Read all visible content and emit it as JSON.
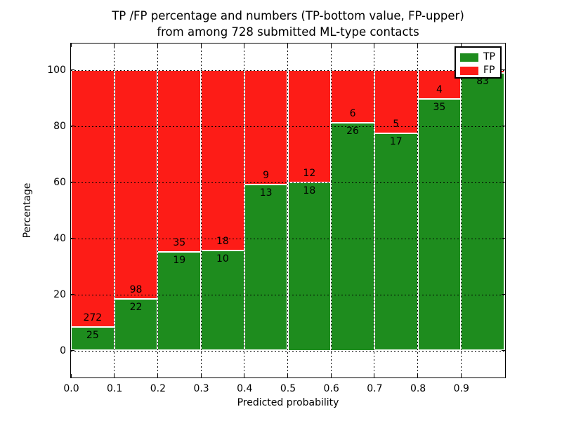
{
  "title": {
    "line1": "TP /FP percentage and numbers (TP-bottom value, FP-upper)",
    "line2": "from among 728 submitted ML-type contacts"
  },
  "chart_data": {
    "type": "bar",
    "stacked": true,
    "normalized_to_percent": true,
    "title": "TP /FP percentage and numbers (TP-bottom value, FP-upper) from among 728 submitted ML-type contacts",
    "xlabel": "Predicted probability",
    "ylabel": "Percentage",
    "total_submitted": 728,
    "bin_width": 0.1,
    "xlim": [
      0.0,
      1.0
    ],
    "ylim": [
      -10,
      110
    ],
    "grid": true,
    "x_tick_labels": [
      "0.0",
      "0.1",
      "0.2",
      "0.3",
      "0.4",
      "0.5",
      "0.6",
      "0.7",
      "0.8",
      "0.9"
    ],
    "y_tick_values": [
      0,
      20,
      40,
      60,
      80,
      100
    ],
    "y_tick_labels": [
      "0",
      "20",
      "40",
      "60",
      "80",
      "100"
    ],
    "legend": {
      "position": "upper right",
      "entries": [
        "TP",
        "FP"
      ]
    },
    "series": [
      {
        "name": "TP",
        "color": "#1e8c1e",
        "counts": [
          25,
          22,
          19,
          10,
          13,
          18,
          26,
          17,
          35,
          83
        ]
      },
      {
        "name": "FP",
        "color": "#fd1c17",
        "counts": [
          272,
          98,
          35,
          18,
          9,
          12,
          6,
          5,
          4,
          1
        ]
      }
    ],
    "bar_labels": {
      "tp": [
        "25",
        "22",
        "19",
        "10",
        "13",
        "18",
        "26",
        "17",
        "35",
        "83"
      ],
      "fp": [
        "272",
        "98",
        "35",
        "18",
        "9",
        "12",
        "6",
        "5",
        "4",
        null
      ]
    }
  }
}
